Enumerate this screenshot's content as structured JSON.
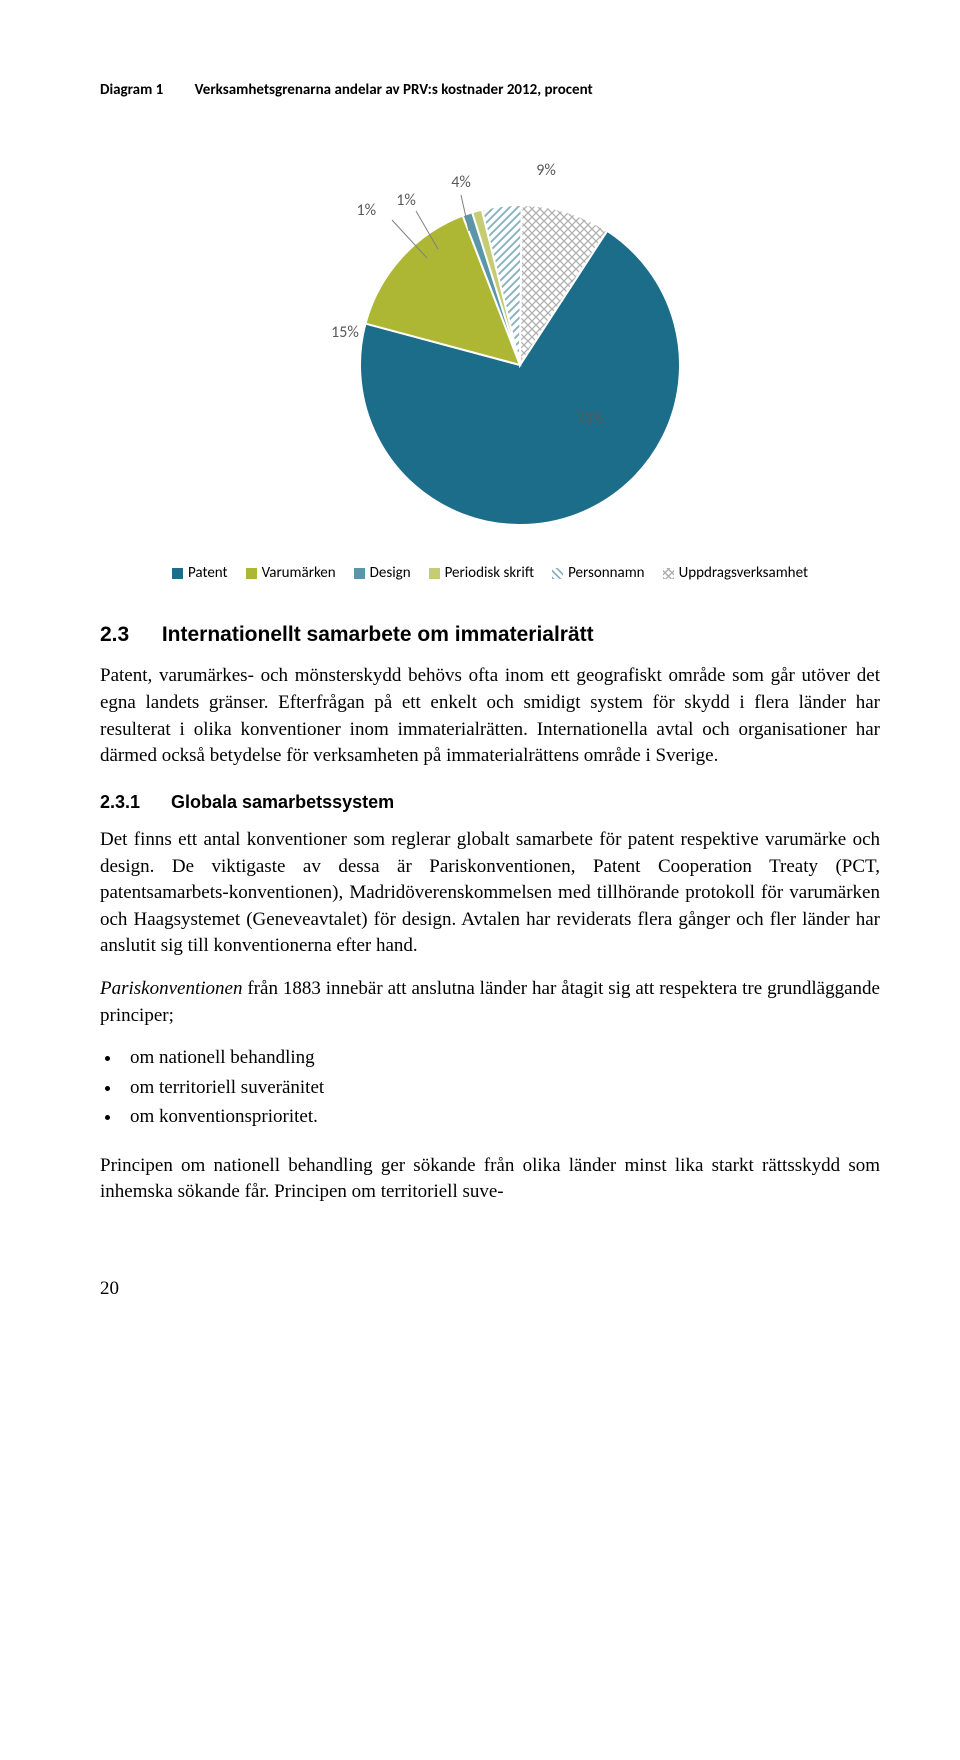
{
  "diagram": {
    "label": "Diagram 1",
    "title": "Verksamhetsgrenarna andelar av PRV:s kostnader 2012, procent",
    "slices": [
      {
        "name": "Patent",
        "value": 70,
        "color": "#1c6d89",
        "pattern": "solid"
      },
      {
        "name": "Varumärken",
        "value": 15,
        "color": "#aeb733",
        "pattern": "solid"
      },
      {
        "name": "Design",
        "value": 1,
        "color": "#5896a8",
        "pattern": "solid"
      },
      {
        "name": "Periodisk skrift",
        "value": 1,
        "color": "#c6cc74",
        "pattern": "solid"
      },
      {
        "name": "Personnamn",
        "value": 4,
        "color": "#8db3c1",
        "pattern": "diag"
      },
      {
        "name": "Uppdragsverksamhet",
        "value": 9,
        "color": "#b0b0b0",
        "pattern": "cross"
      }
    ],
    "labels": {
      "l1": "1%",
      "l1b": "1%",
      "l4": "4%",
      "l9": "9%",
      "l15": "15%",
      "l70": "70%"
    },
    "legend": {
      "patent": "Patent",
      "varumarken": "Varumärken",
      "design": "Design",
      "periodisk": "Periodisk skrift",
      "personnamn": "Personnamn",
      "uppdrag": "Uppdragsverksamhet"
    },
    "legend_colors": {
      "patent": "#1c6d89",
      "varumarken": "#aeb733",
      "design": "#5896a8",
      "periodisk": "#c6cc74",
      "personnamn_fill": "#ffffff",
      "personnamn_stroke": "#8db3c1",
      "uppdrag_fill": "#ffffff",
      "uppdrag_stroke": "#b0b0b0"
    }
  },
  "section23": {
    "num": "2.3",
    "title": "Internationellt samarbete om immaterialrätt",
    "p1": "Patent, varumärkes- och mönsterskydd behövs ofta inom ett geografiskt område som går utöver det egna landets gränser. Efterfrågan på ett enkelt och smidigt system för skydd i flera länder har resulterat i olika konventioner inom immaterialrätten. Internationella avtal och organisationer har därmed också betydelse för verksamheten på immaterialrättens område i Sverige."
  },
  "section231": {
    "num": "2.3.1",
    "title": "Globala samarbetssystem",
    "p1": "Det finns ett antal konventioner som reglerar globalt samarbete för patent respektive varumärke och design. De viktigaste av dessa är Pariskonventionen, Patent Cooperation Treaty (PCT, patentsamarbets-konventionen), Madridöverenskommelsen med tillhörande protokoll för varumärken och Haagsystemet (Geneveavtalet) för design. Avtalen har reviderats flera gånger och fler länder har anslutit sig till konventionerna efter hand.",
    "p2_italic": "Pariskonventionen",
    "p2_rest": " från 1883 innebär att anslutna länder har åtagit sig att respektera tre grundläggande principer;",
    "bullets": {
      "b1": "om nationell behandling",
      "b2": "om territoriell suveränitet",
      "b3": "om konventionsprioritet."
    },
    "p3": "Principen om nationell behandling ger sökande från olika länder minst lika starkt rättsskydd som inhemska sökande får. Principen om territoriell suve-"
  },
  "page_number": "20"
}
